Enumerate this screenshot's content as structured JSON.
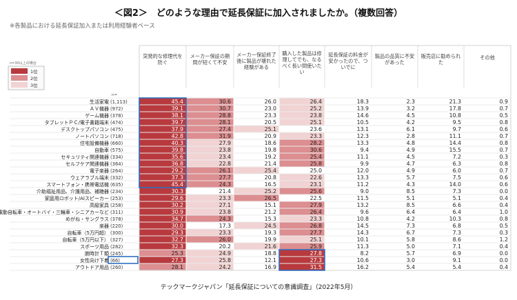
{
  "title": "＜図2＞　どのような理由で延長保証に加入されましたか。（複数回答）",
  "subtitle": "※各製品における延長保証加入または利用経験者ベース",
  "source": "テックマークジャパン「延長保証についての意識調査」（2022年5月）",
  "note": "n=30以上の場合",
  "legend": [
    {
      "label": "1位",
      "color": "#b83a3e"
    },
    {
      "label": "2位",
      "color": "#dc8e90"
    },
    {
      "label": "3位",
      "color": "#f1d3d3"
    }
  ],
  "n_label": "n=",
  "colors": {
    "rank1": "#b83a3e",
    "rank2": "#dc8e90",
    "rank3": "#f1d3d3",
    "highlight": "#2e6fc2"
  },
  "chart_data": {
    "type": "table",
    "columns": [
      "突発的な修理代を防ぐ",
      "メーカー保証の期間が短くて不安",
      "メーカー保証終了後に製品が壊れた経験がある",
      "購入した製品は修理してでも、なるべく長い間使いたい",
      "延長保証の料金が安かったので、ついでに",
      "製品の品質に不安があった",
      "販売店に勧められた",
      "その他"
    ],
    "rows": [
      {
        "label": "生活家電",
        "n": "(1,113)",
        "values": [
          45.4,
          30.6,
          26.0,
          26.4,
          18.3,
          2.3,
          21.3,
          0.9
        ],
        "ranks": [
          1,
          2,
          0,
          3,
          0,
          0,
          0,
          0
        ]
      },
      {
        "label": "ＡＶ機器",
        "n": "(972)",
        "values": [
          39.1,
          30.7,
          23.0,
          25.2,
          13.9,
          3.2,
          17.8,
          0.7
        ],
        "ranks": [
          1,
          2,
          0,
          3,
          0,
          0,
          0,
          0
        ]
      },
      {
        "label": "ゲーム機器",
        "n": "(378)",
        "values": [
          38.1,
          28.8,
          23.3,
          23.8,
          14.6,
          4.5,
          10.8,
          0.5
        ],
        "ranks": [
          1,
          2,
          0,
          3,
          0,
          0,
          0,
          0
        ]
      },
      {
        "label": "タブレットＰＣ/電子書籍端末",
        "n": "(474)",
        "values": [
          39.7,
          28.1,
          20.5,
          25.1,
          10.5,
          4.2,
          9.5,
          0.8
        ],
        "ranks": [
          1,
          2,
          0,
          3,
          0,
          0,
          0,
          0
        ]
      },
      {
        "label": "デスクトップパソコン",
        "n": "(475)",
        "values": [
          37.9,
          27.4,
          25.1,
          23.6,
          13.1,
          6.1,
          9.7,
          0.6
        ],
        "ranks": [
          1,
          2,
          3,
          0,
          0,
          0,
          0,
          0
        ]
      },
      {
        "label": "ノートパソコン",
        "n": "(718)",
        "values": [
          42.8,
          31.9,
          20.9,
          23.3,
          12.3,
          2.8,
          11.1,
          0.7
        ],
        "ranks": [
          1,
          2,
          0,
          3,
          0,
          0,
          0,
          0
        ]
      },
      {
        "label": "住宅設備機器",
        "n": "(660)",
        "values": [
          40.3,
          27.9,
          18.6,
          28.2,
          13.3,
          4.8,
          14.4,
          0.8
        ],
        "ranks": [
          1,
          3,
          0,
          2,
          0,
          0,
          0,
          0
        ]
      },
      {
        "label": "自動車",
        "n": "(575)",
        "values": [
          39.8,
          23.8,
          19.8,
          30.6,
          9.4,
          4.9,
          15.5,
          0.7
        ],
        "ranks": [
          1,
          3,
          0,
          2,
          0,
          0,
          0,
          0
        ]
      },
      {
        "label": "セキュリティ関連機器",
        "n": "(334)",
        "values": [
          35.6,
          23.4,
          19.2,
          25.4,
          11.1,
          4.5,
          7.2,
          0.3
        ],
        "ranks": [
          1,
          3,
          0,
          2,
          0,
          0,
          0,
          0
        ]
      },
      {
        "label": "セルフケア関連機器",
        "n": "(364)",
        "values": [
          36.8,
          22.8,
          21.4,
          25.8,
          9.9,
          4.7,
          6.3,
          0.8
        ],
        "ranks": [
          1,
          3,
          0,
          2,
          0,
          0,
          0,
          0
        ]
      },
      {
        "label": "電子楽器",
        "n": "(264)",
        "values": [
          29.2,
          26.1,
          25.4,
          25.0,
          12.0,
          4.9,
          6.0,
          0.7
        ],
        "ranks": [
          1,
          2,
          3,
          0,
          0,
          0,
          0,
          0
        ]
      },
      {
        "label": "ウェアラブル端末",
        "n": "(332)",
        "values": [
          37.3,
          27.7,
          20.8,
          22.6,
          13.3,
          5.7,
          7.5,
          0.6
        ],
        "ranks": [
          1,
          2,
          0,
          3,
          0,
          0,
          0,
          0
        ]
      },
      {
        "label": "スマートフォン・携帯電話機",
        "n": "(635)",
        "values": [
          45.4,
          24.3,
          16.5,
          23.1,
          11.2,
          4.3,
          14.0,
          0.6
        ],
        "ranks": [
          1,
          2,
          0,
          3,
          0,
          0,
          0,
          0
        ]
      },
      {
        "label": "介助福祉用品、介護用品、補聴器",
        "n": "(234)",
        "values": [
          30.3,
          21.4,
          25.2,
          25.6,
          9.0,
          8.5,
          7.3,
          0.0
        ],
        "ranks": [
          1,
          0,
          3,
          2,
          0,
          0,
          0,
          0
        ]
      },
      {
        "label": "家庭用ロボット/AIスピーカー",
        "n": "(253)",
        "values": [
          29.6,
          23.3,
          26.5,
          22.5,
          11.5,
          5.1,
          5.1,
          0.4
        ],
        "ranks": [
          1,
          3,
          2,
          0,
          0,
          0,
          0,
          0
        ]
      },
      {
        "label": "高級家具",
        "n": "(258)",
        "values": [
          30.2,
          27.1,
          15.1,
          27.9,
          13.2,
          8.5,
          6.6,
          0.4
        ],
        "ranks": [
          1,
          3,
          0,
          2,
          0,
          0,
          0,
          0
        ]
      },
      {
        "label": "電動自転車・オートバイ・三輪車・シニアカーなど",
        "n": "(311)",
        "values": [
          30.9,
          23.8,
          21.2,
          26.4,
          9.6,
          6.4,
          6.4,
          1.0
        ],
        "ranks": [
          1,
          3,
          0,
          2,
          0,
          0,
          0,
          0
        ]
      },
      {
        "label": "めがね・サングラス",
        "n": "(378)",
        "values": [
          34.7,
          24.3,
          15.3,
          23.3,
          10.8,
          4.2,
          10.3,
          0.8
        ],
        "ranks": [
          1,
          2,
          0,
          3,
          0,
          0,
          0,
          0
        ]
      },
      {
        "label": "楽器",
        "n": "(220)",
        "values": [
          30.0,
          17.3,
          24.5,
          26.8,
          14.5,
          7.3,
          6.8,
          0.5
        ],
        "ranks": [
          1,
          0,
          3,
          2,
          0,
          0,
          0,
          0
        ]
      },
      {
        "label": "自転車（5万円超）",
        "n": "(300)",
        "values": [
          29.3,
          23.3,
          19.3,
          27.7,
          14.3,
          6.7,
          7.3,
          0.3
        ],
        "ranks": [
          1,
          3,
          0,
          2,
          0,
          0,
          0,
          0
        ]
      },
      {
        "label": "自転車（5万円以下）",
        "n": "(327)",
        "values": [
          32.7,
          26.0,
          19.9,
          25.1,
          10.1,
          5.8,
          8.6,
          1.2
        ],
        "ranks": [
          1,
          2,
          0,
          3,
          0,
          0,
          0,
          0
        ]
      },
      {
        "label": "スポーツ用品",
        "n": "(282)",
        "values": [
          32.3,
          20.2,
          21.6,
          25.9,
          11.3,
          5.0,
          7.1,
          0.4
        ],
        "ranks": [
          1,
          0,
          3,
          2,
          0,
          0,
          0,
          0
        ]
      },
      {
        "label": "腕時計Ｔ類",
        "n": "(245)",
        "values": [
          25.3,
          24.9,
          18.8,
          27.8,
          8.2,
          5.7,
          6.9,
          0.0
        ],
        "ranks": [
          2,
          3,
          0,
          1,
          0,
          0,
          0,
          0
        ]
      },
      {
        "label": "女性向け下着",
        "n": "(66)",
        "values": [
          27.3,
          25.8,
          12.1,
          27.3,
          10.6,
          3.0,
          9.1,
          0.0
        ],
        "ranks": [
          1,
          3,
          0,
          1,
          0,
          0,
          0,
          0
        ]
      },
      {
        "label": "アウトドア用品",
        "n": "(260)",
        "values": [
          28.1,
          24.2,
          16.9,
          31.5,
          16.2,
          5.4,
          5.4,
          0.4
        ],
        "ranks": [
          2,
          3,
          0,
          1,
          0,
          0,
          0,
          0
        ]
      }
    ],
    "highlights": [
      {
        "col": 0,
        "rows": [
          0,
          12
        ]
      },
      {
        "col": 3,
        "rows": [
          22,
          24
        ]
      },
      {
        "col": "label",
        "rows": [
          23,
          23
        ]
      }
    ]
  }
}
